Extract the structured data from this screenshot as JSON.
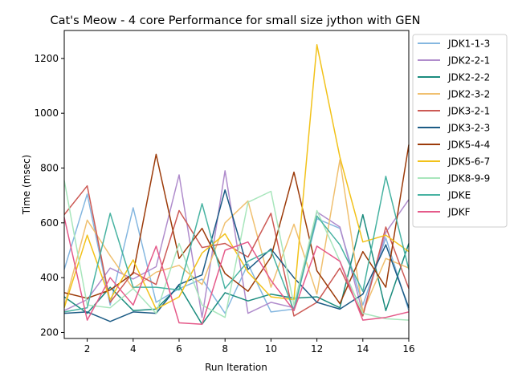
{
  "chart_data": {
    "type": "line",
    "title": "Cat's Meow - 4 core Performance for small size jython with GEN",
    "xlabel": "Run Iteration",
    "ylabel": "Time (msec)",
    "xlim": [
      1,
      16
    ],
    "ylim": [
      178,
      1302
    ],
    "xticks": [
      2,
      4,
      6,
      8,
      10,
      12,
      14,
      16
    ],
    "yticks": [
      200,
      400,
      600,
      800,
      1000,
      1200
    ],
    "legend_position": "outside-right-top",
    "x": [
      1,
      2,
      3,
      4,
      5,
      6,
      7,
      8,
      9,
      10,
      11,
      12,
      13,
      14,
      15,
      16
    ],
    "series": [
      {
        "name": "JDK1-1-3",
        "color": "#85b7e0",
        "values": [
          430,
          705,
          300,
          655,
          310,
          360,
          395,
          270,
          450,
          275,
          285,
          615,
          580,
          300,
          545,
          280
        ]
      },
      {
        "name": "JDK2-2-1",
        "color": "#b08ccc",
        "values": [
          280,
          320,
          435,
          395,
          440,
          775,
          255,
          790,
          270,
          310,
          290,
          640,
          585,
          270,
          565,
          685
        ]
      },
      {
        "name": "JDK2-2-2",
        "color": "#1b8c7e",
        "values": [
          330,
          270,
          365,
          280,
          285,
          370,
          230,
          345,
          315,
          340,
          325,
          330,
          290,
          630,
          280,
          525
        ]
      },
      {
        "name": "JDK2-3-2",
        "color": "#f0c070",
        "values": [
          295,
          610,
          480,
          360,
          420,
          445,
          375,
          600,
          680,
          365,
          595,
          340,
          830,
          275,
          470,
          435
        ]
      },
      {
        "name": "JDK3-2-1",
        "color": "#cc5a55",
        "values": [
          630,
          735,
          310,
          420,
          375,
          645,
          510,
          525,
          475,
          635,
          260,
          310,
          435,
          260,
          585,
          360
        ]
      },
      {
        "name": "JDK3-2-3",
        "color": "#1c5b85",
        "values": [
          270,
          275,
          240,
          275,
          270,
          375,
          410,
          720,
          430,
          505,
          400,
          310,
          285,
          340,
          520,
          290
        ]
      },
      {
        "name": "JDK5-4-4",
        "color": "#9c3b0a",
        "values": [
          345,
          325,
          355,
          415,
          850,
          470,
          580,
          415,
          350,
          475,
          785,
          425,
          305,
          495,
          365,
          885
        ]
      },
      {
        "name": "JDK5-6-7",
        "color": "#f2c21a",
        "values": [
          290,
          555,
          320,
          465,
          285,
          330,
          490,
          560,
          420,
          330,
          320,
          1250,
          840,
          530,
          555,
          495
        ]
      },
      {
        "name": "JDK8-9-9",
        "color": "#a8e6bc",
        "values": [
          755,
          300,
          290,
          360,
          270,
          525,
          300,
          255,
          675,
          715,
          300,
          645,
          460,
          270,
          250,
          245
        ]
      },
      {
        "name": "JDKE",
        "color": "#48b3a2",
        "values": [
          275,
          290,
          635,
          365,
          365,
          355,
          670,
          360,
          460,
          500,
          280,
          625,
          520,
          350,
          770,
          430
        ]
      },
      {
        "name": "JDKF",
        "color": "#e55a8a",
        "values": [
          620,
          245,
          400,
          300,
          515,
          235,
          230,
          500,
          530,
          390,
          280,
          515,
          460,
          245,
          255,
          275
        ]
      }
    ]
  }
}
